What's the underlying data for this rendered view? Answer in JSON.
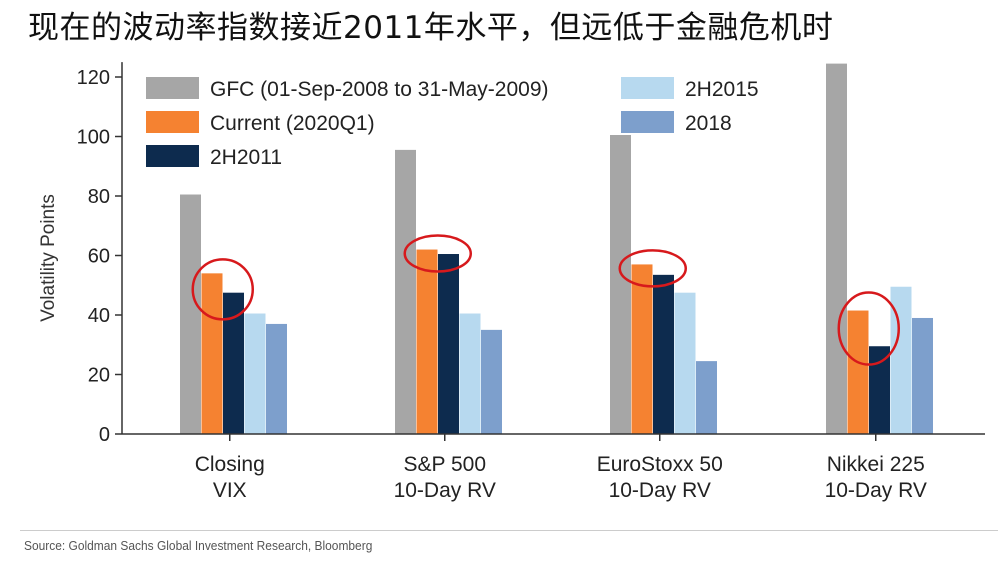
{
  "title": "现在的波动率指数接近2011年水平，但远低于金融危机时",
  "source": "Source: Goldman Sachs Global Investment Research, Bloomberg",
  "chart_data": {
    "type": "bar",
    "ylabel": "Volatility Points",
    "xlabel": "",
    "ylim": [
      0,
      125
    ],
    "yticks": [
      0,
      20,
      40,
      60,
      80,
      100,
      120
    ],
    "grid": false,
    "legend_position": "top",
    "categories": [
      [
        "Closing",
        "VIX"
      ],
      [
        "S&P 500",
        "10-Day RV"
      ],
      [
        "EuroStoxx 50",
        "10-Day RV"
      ],
      [
        "Nikkei 225",
        "10-Day RV"
      ]
    ],
    "series": [
      {
        "name": "GFC (01-Sep-2008 to 31-May-2009)",
        "color": "#a6a6a6",
        "values": [
          80.5,
          95.5,
          100.5,
          124.5
        ]
      },
      {
        "name": "Current (2020Q1)",
        "color": "#f58231",
        "values": [
          54,
          62,
          57,
          41.5
        ]
      },
      {
        "name": "2H2011",
        "color": "#0d2b4e",
        "values": [
          47.5,
          60.5,
          53.5,
          29.5
        ]
      },
      {
        "name": "2H2015",
        "color": "#b7d9ef",
        "values": [
          40.5,
          40.5,
          47.5,
          49.5
        ]
      },
      {
        "name": "2018",
        "color": "#7d9fcc",
        "values": [
          37,
          35,
          24.5,
          39
        ]
      }
    ],
    "annotations": [
      {
        "type": "red-ellipse",
        "category_index": 0
      },
      {
        "type": "red-ellipse",
        "category_index": 1
      },
      {
        "type": "red-ellipse",
        "category_index": 2
      },
      {
        "type": "red-ellipse",
        "category_index": 3
      }
    ]
  },
  "colors": {
    "annotation": "#d7191c",
    "axis": "#333333"
  }
}
